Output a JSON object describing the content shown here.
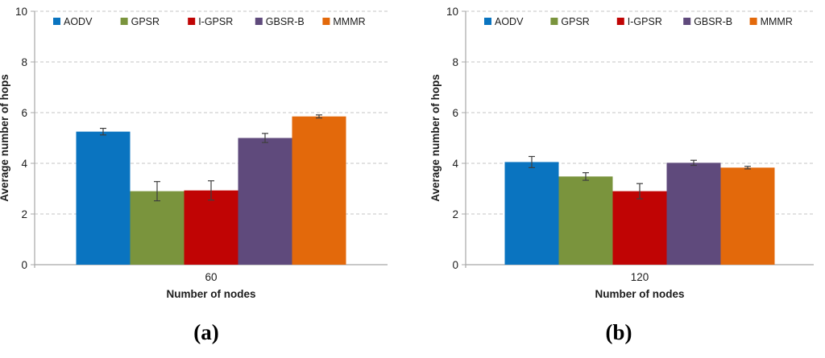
{
  "style": {
    "background": "#FFFFFF",
    "axis_color": "#A8A8A8",
    "grid_color": "#C6C6C6",
    "text_color": "#1C1C1C",
    "error_bar_color": "#3F3F3F",
    "caption_color": "#000000"
  },
  "chart_data": [
    {
      "type": "bar",
      "caption": "(a)",
      "categories": [
        "60"
      ],
      "xlabel": "Number of nodes",
      "ylabel": "Average number of hops",
      "ylim": [
        0,
        10
      ],
      "yticks": [
        0,
        2,
        4,
        6,
        8,
        10
      ],
      "grid": true,
      "gridline_style": "dashed",
      "legend_position": "top",
      "series": [
        {
          "name": "AODV",
          "color": "#0A74C0",
          "values": [
            5.25
          ],
          "errors": [
            0.13
          ]
        },
        {
          "name": "GPSR",
          "color": "#7A943D",
          "values": [
            2.9
          ],
          "errors": [
            0.38
          ]
        },
        {
          "name": "I-GPSR",
          "color": "#C00404",
          "values": [
            2.93
          ],
          "errors": [
            0.38
          ]
        },
        {
          "name": "GBSR-B",
          "color": "#5F4A7C",
          "values": [
            5.0
          ],
          "errors": [
            0.18
          ]
        },
        {
          "name": "MMMR",
          "color": "#E3690B",
          "values": [
            5.85
          ],
          "errors": [
            0.06
          ]
        }
      ]
    },
    {
      "type": "bar",
      "caption": "(b)",
      "categories": [
        "120"
      ],
      "xlabel": "Number of nodes",
      "ylabel": "Average number of hops",
      "ylim": [
        0,
        10
      ],
      "yticks": [
        0,
        2,
        4,
        6,
        8,
        10
      ],
      "grid": true,
      "gridline_style": "dashed",
      "legend_position": "top",
      "series": [
        {
          "name": "AODV",
          "color": "#0A74C0",
          "values": [
            4.05
          ],
          "errors": [
            0.22
          ]
        },
        {
          "name": "GPSR",
          "color": "#7A943D",
          "values": [
            3.48
          ],
          "errors": [
            0.15
          ]
        },
        {
          "name": "I-GPSR",
          "color": "#C00404",
          "values": [
            2.9
          ],
          "errors": [
            0.3
          ]
        },
        {
          "name": "GBSR-B",
          "color": "#5F4A7C",
          "values": [
            4.02
          ],
          "errors": [
            0.1
          ]
        },
        {
          "name": "MMMR",
          "color": "#E3690B",
          "values": [
            3.83
          ],
          "errors": [
            0.05
          ]
        }
      ]
    }
  ]
}
